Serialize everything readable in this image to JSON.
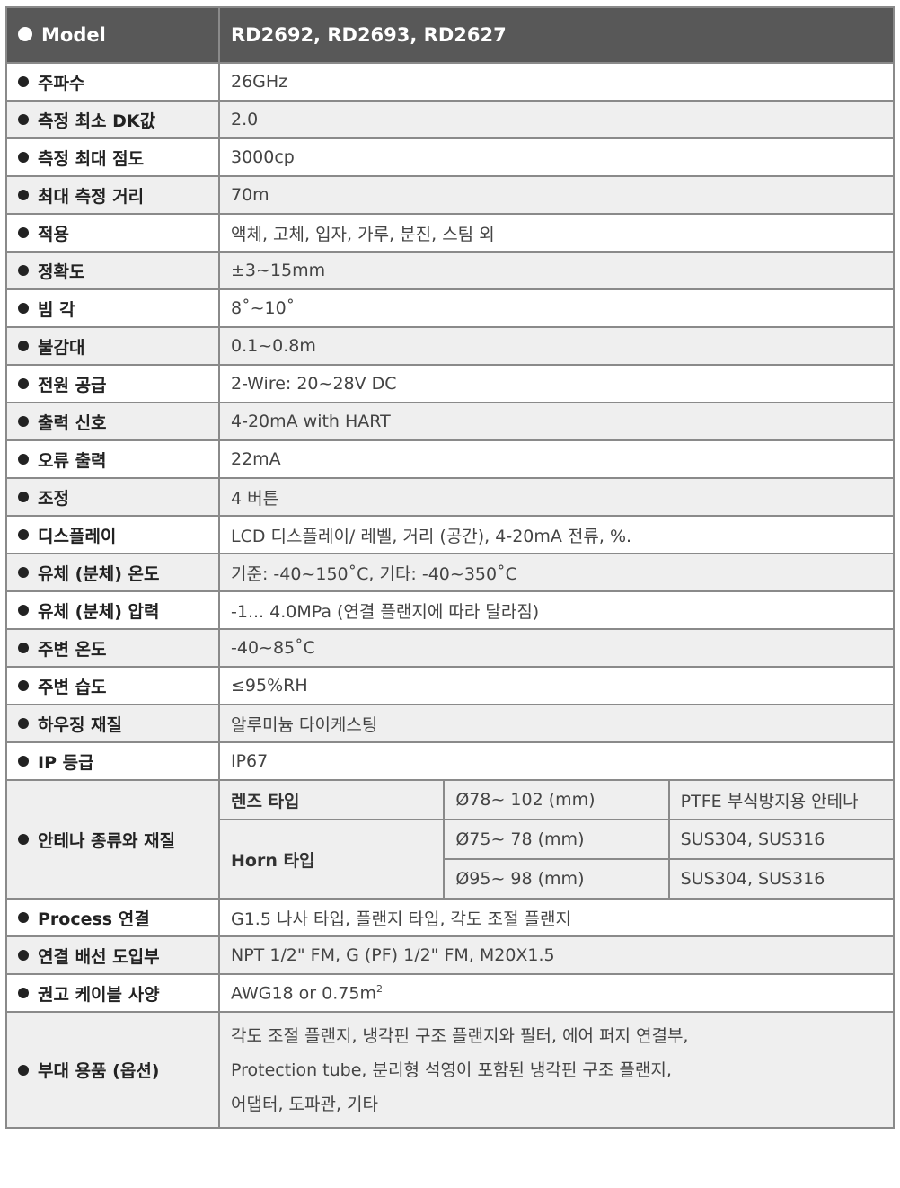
{
  "header": {
    "label": "Model",
    "value": "RD2692, RD2693, RD2627"
  },
  "rows": [
    {
      "label": "주파수",
      "value": "26GHz"
    },
    {
      "label": "측정 최소 DK값",
      "value": "2.0"
    },
    {
      "label": "측정 최대 점도",
      "value": "3000cp"
    },
    {
      "label": "최대 측정 거리",
      "value": "70m"
    },
    {
      "label": "적용",
      "value": "액체, 고체, 입자, 가루, 분진, 스팀 외"
    },
    {
      "label": "정확도",
      "value": "±3~15mm"
    },
    {
      "label": "빔 각",
      "value": "8˚~10˚"
    },
    {
      "label": "불감대",
      "value": "0.1~0.8m"
    },
    {
      "label": "전원 공급",
      "value": "2-Wire: 20~28V DC"
    },
    {
      "label": "출력 신호",
      "value": "4-20mA with HART"
    },
    {
      "label": "오류 출력",
      "value": "22mA"
    },
    {
      "label": "조정",
      "value": "4 버튼"
    },
    {
      "label": "디스플레이",
      "value": "LCD 디스플레이/ 레벨, 거리 (공간), 4-20mA 전류, %."
    },
    {
      "label": "유체 (분체) 온도",
      "value": "기준: -40~150˚C, 기타: -40~350˚C"
    },
    {
      "label": "유체 (분체) 압력",
      "value": " -1... 4.0MPa (연결 플랜지에 따라 달라짐)"
    },
    {
      "label": "주변 온도",
      "value": "-40~85˚C"
    },
    {
      "label": "주변 습도",
      "value": "≤95%RH"
    },
    {
      "label": "하우징 재질",
      "value": "알루미늄 다이케스팅"
    },
    {
      "label": "IP 등급",
      "value": "IP67"
    }
  ],
  "antenna": {
    "label": "안테나 종류와 재질",
    "lens": {
      "type": "렌즈 타입",
      "size": "Ø78~ 102 (mm)",
      "material": "PTFE 부식방지용 안테나"
    },
    "horn": {
      "type": "Horn 타입",
      "items": [
        {
          "size": "Ø75~ 78 (mm)",
          "material": "SUS304, SUS316"
        },
        {
          "size": "Ø95~ 98 (mm)",
          "material": "SUS304, SUS316"
        }
      ]
    }
  },
  "process": {
    "label": "Process 연결",
    "value": "G1.5 나사 타입, 플랜지 타입, 각도 조절 플랜지"
  },
  "wiring": {
    "label": "연결 배선 도입부",
    "value": "NPT 1/2\" FM, G (PF) 1/2\" FM, M20X1.5"
  },
  "cable": {
    "label": "권고 케이블 사양",
    "value": "AWG18 or 0.75m",
    "superscript": "2"
  },
  "accessories": {
    "label": "부대 용품 (옵션)",
    "lines": [
      "각도 조절 플랜지, 냉각핀 구조 플랜지와 필터, 에어 퍼지 연결부,",
      "Protection tube, 분리형 석영이 포함된 냉각핀 구조 플랜지,",
      "어댑터, 도파관, 기타"
    ]
  }
}
